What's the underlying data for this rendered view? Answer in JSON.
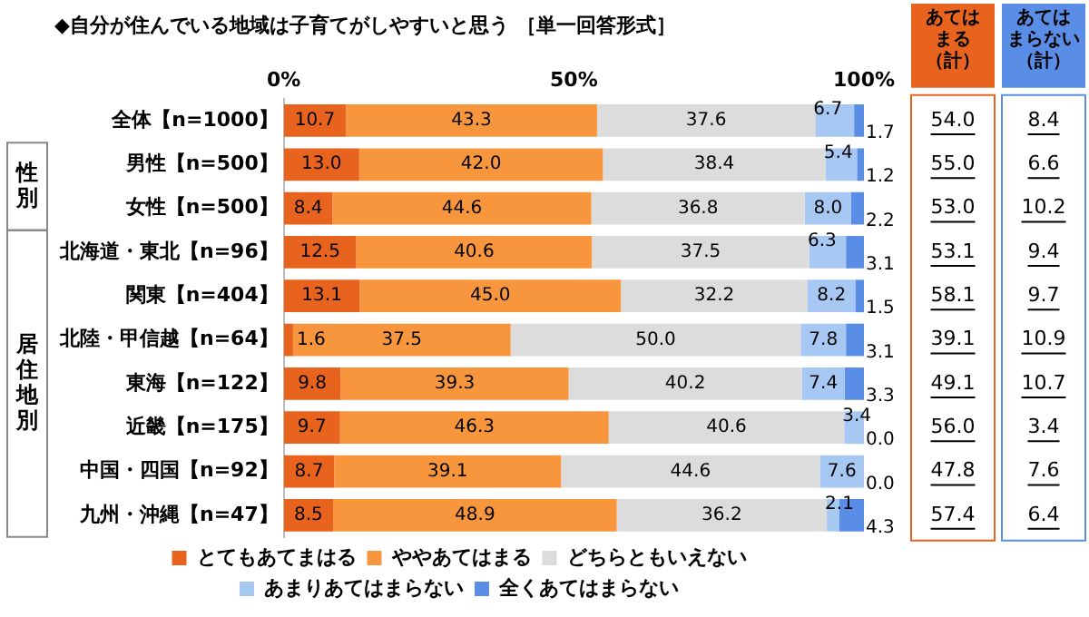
{
  "chart_data": {
    "type": "bar",
    "orientation": "horizontal",
    "stacked": true,
    "title": "◆自分が住んでいる地域は子育てがしやすいと思う ［単一回答形式］",
    "categories": [
      "全体【n=1000】",
      "男性【n=500】",
      "女性【n=500】",
      "北海道・東北【n=96】",
      "関東【n=404】",
      "北陸・甲信越【n=64】",
      "東海【n=122】",
      "近畿【n=175】",
      "中国・四国【n=92】",
      "九州・沖縄【n=47】"
    ],
    "series": [
      {
        "name": "とてもあてまはる",
        "color": "#e8641e",
        "values": [
          10.7,
          13.0,
          8.4,
          12.5,
          13.1,
          1.6,
          9.8,
          9.7,
          8.7,
          8.5
        ],
        "value_labels": [
          "10.7",
          "13.0",
          "8.4",
          "12.5",
          "13.1",
          "1.6",
          "9.8",
          "9.7",
          "8.7",
          "8.5"
        ]
      },
      {
        "name": "ややあてはまる",
        "color": "#f7963c",
        "values": [
          43.3,
          42.0,
          44.6,
          40.6,
          45.0,
          37.5,
          39.3,
          46.3,
          39.1,
          48.9
        ],
        "value_labels": [
          "43.3",
          "42.0",
          "44.6",
          "40.6",
          "45.0",
          "37.5",
          "39.3",
          "46.3",
          "39.1",
          "48.9"
        ]
      },
      {
        "name": "どちらともいえない",
        "color": "#dcdcdc",
        "values": [
          37.6,
          38.4,
          36.8,
          37.5,
          32.2,
          50.0,
          40.2,
          40.6,
          44.6,
          36.2
        ],
        "value_labels": [
          "37.6",
          "38.4",
          "36.8",
          "37.5",
          "32.2",
          "50.0",
          "40.2",
          "40.6",
          "44.6",
          "36.2"
        ]
      },
      {
        "name": "あまりあてはまらない",
        "color": "#a6c8f2",
        "values": [
          6.7,
          5.4,
          8.0,
          6.3,
          8.2,
          7.8,
          7.4,
          3.4,
          7.6,
          2.1
        ],
        "value_labels": [
          "6.7",
          "5.4",
          "8.0",
          "6.3",
          "8.2",
          "7.8",
          "7.4",
          "3.4",
          "7.6",
          "2.1"
        ]
      },
      {
        "name": "全くあてはまらない",
        "color": "#5a8ee6",
        "values": [
          1.7,
          1.2,
          2.2,
          3.1,
          1.5,
          3.1,
          3.3,
          0.0,
          0.0,
          4.3
        ],
        "value_labels": [
          "1.7",
          "1.2",
          "2.2",
          "3.1",
          "1.5",
          "3.1",
          "3.3",
          "0.0",
          "0.0",
          "4.3"
        ]
      }
    ],
    "xlim": [
      0,
      100
    ],
    "xticks": [
      {
        "value": 0,
        "label": "0%"
      },
      {
        "value": 50,
        "label": "50%"
      },
      {
        "value": 100,
        "label": "100%"
      }
    ],
    "grid": false,
    "legend": "bottom",
    "annotations": [
      "あてはまる（計）",
      "あてはまらない（計）",
      "性別",
      "居住地別",
      "54.0",
      "8.4",
      "55.0",
      "6.6",
      "53.0",
      "10.2",
      "53.1",
      "9.4",
      "58.1",
      "9.7",
      "39.1",
      "10.9",
      "49.1",
      "10.7",
      "56.0",
      "3.4",
      "47.8",
      "7.6",
      "57.4",
      "6.4"
    ]
  }
}
